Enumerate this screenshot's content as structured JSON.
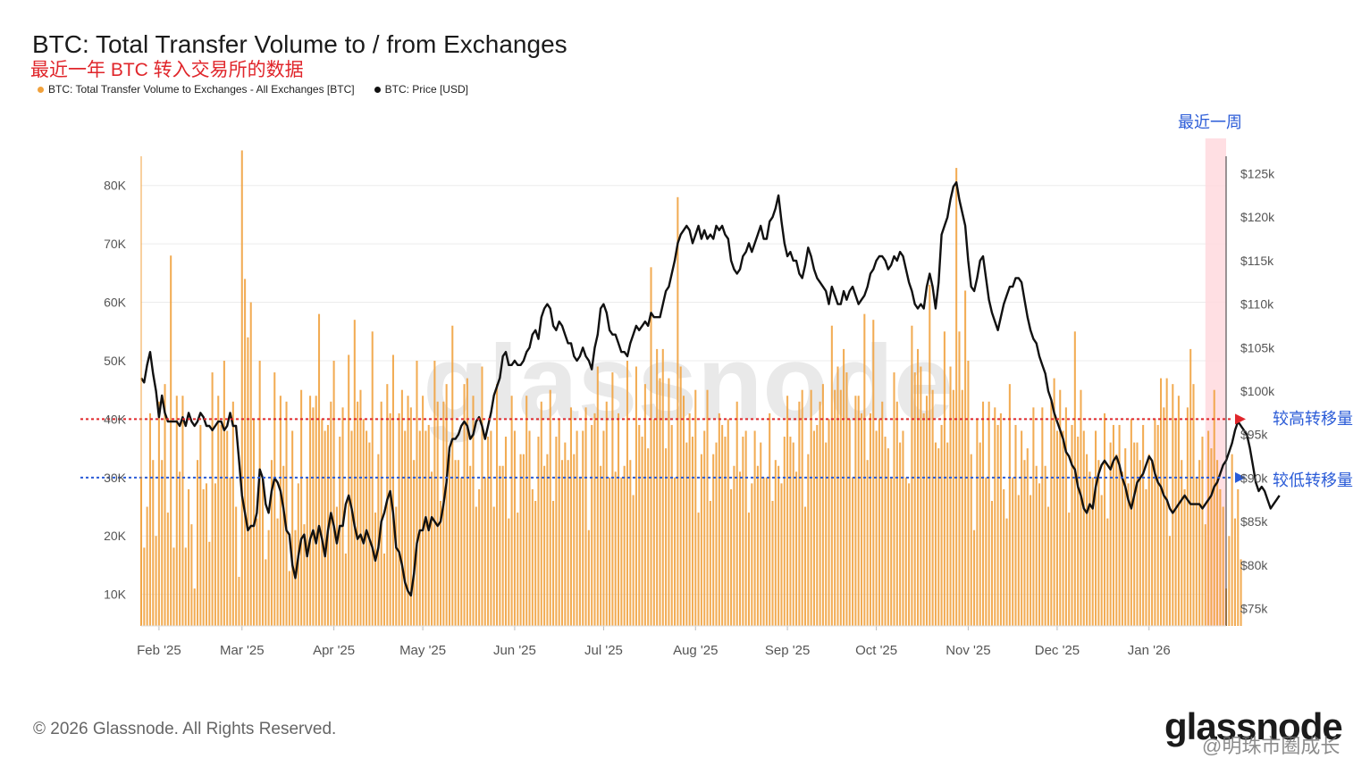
{
  "header": {
    "title": "BTC: Total Transfer Volume to / from Exchanges",
    "subtitle": "最近一年 BTC 转入交易所的数据"
  },
  "legend": [
    {
      "label": "BTC: Total Transfer Volume to Exchanges - All Exchanges [BTC]",
      "color": "#f0a13c"
    },
    {
      "label": "BTC: Price [USD]",
      "color": "#111111"
    }
  ],
  "annotations": {
    "recent_week": "最近一周",
    "high_line": "较高转移量",
    "low_line": "较低转移量",
    "high_value": 40000,
    "low_value": 30000,
    "high_color": "#e0262b",
    "low_color": "#2a5bd7"
  },
  "footer": {
    "copyright": "© 2026 Glassnode. All Rights Reserved.",
    "logo": "glassnode",
    "watermark": "@明珠市圈成长"
  },
  "chart_data": {
    "type": "bar",
    "grid": true,
    "x_start": "2025-01-26",
    "x_end": "2026-01-27",
    "x_ticks": [
      {
        "label": "Feb '25",
        "date": "2025-02-01"
      },
      {
        "label": "Mar '25",
        "date": "2025-03-01"
      },
      {
        "label": "Apr '25",
        "date": "2025-04-01"
      },
      {
        "label": "May '25",
        "date": "2025-05-01"
      },
      {
        "label": "Jun '25",
        "date": "2025-06-01"
      },
      {
        "label": "Jul '25",
        "date": "2025-07-01"
      },
      {
        "label": "Aug '25",
        "date": "2025-08-01"
      },
      {
        "label": "Sep '25",
        "date": "2025-09-01"
      },
      {
        "label": "Oct '25",
        "date": "2025-10-01"
      },
      {
        "label": "Nov '25",
        "date": "2025-11-01"
      },
      {
        "label": "Dec '25",
        "date": "2025-12-01"
      },
      {
        "label": "Jan '26",
        "date": "2026-01-01"
      }
    ],
    "y_left": {
      "min": 4600,
      "max": 85000,
      "ticks": [
        {
          "label": "10K",
          "value": 10000
        },
        {
          "label": "20K",
          "value": 20000
        },
        {
          "label": "30K",
          "value": 30000
        },
        {
          "label": "40K",
          "value": 40000
        },
        {
          "label": "50K",
          "value": 50000
        },
        {
          "label": "60K",
          "value": 60000
        },
        {
          "label": "70K",
          "value": 70000
        },
        {
          "label": "80K",
          "value": 80000
        }
      ]
    },
    "y_right": {
      "min": 73000,
      "max": 127000,
      "ticks": [
        {
          "label": "$75k",
          "value": 75000
        },
        {
          "label": "$80k",
          "value": 80000
        },
        {
          "label": "$85k",
          "value": 85000
        },
        {
          "label": "$90k",
          "value": 90000
        },
        {
          "label": "$95k",
          "value": 95000
        },
        {
          "label": "$100k",
          "value": 100000
        },
        {
          "label": "$105k",
          "value": 105000
        },
        {
          "label": "$110k",
          "value": 110000
        },
        {
          "label": "$115k",
          "value": 115000
        },
        {
          "label": "$120k",
          "value": 120000
        },
        {
          "label": "$125k",
          "value": 125000
        }
      ]
    },
    "recent_week": {
      "start": "2026-01-20",
      "end": "2026-01-27"
    },
    "series": [
      {
        "name": "BTC: Total Transfer Volume to Exchanges - All Exchanges [BTC]",
        "type": "bar",
        "color": "#f0a13c",
        "start_date": "2025-01-26",
        "values": [
          30000,
          18000,
          25000,
          41000,
          33000,
          20000,
          43000,
          33000,
          46000,
          24000,
          68000,
          18000,
          44000,
          31000,
          44000,
          18000,
          28000,
          22000,
          11000,
          33000,
          39000,
          28000,
          29000,
          19000,
          48000,
          29000,
          44000,
          39000,
          50000,
          38000,
          30000,
          43000,
          25000,
          13000,
          86000,
          64000,
          54000,
          60000,
          40000,
          23000,
          50000,
          30000,
          16000,
          21000,
          33000,
          48000,
          23000,
          44000,
          32000,
          43000,
          14000,
          38000,
          21000,
          29000,
          45000,
          22000,
          30000,
          44000,
          42000,
          44000,
          58000,
          40000,
          38000,
          39000,
          43000,
          50000,
          25000,
          37000,
          42000,
          17000,
          51000,
          38000,
          57000,
          43000,
          45000,
          40000,
          38000,
          36000,
          55000,
          24000,
          34000,
          43000,
          17000,
          46000,
          41000,
          51000,
          25000,
          41000,
          45000,
          38000,
          44000,
          42000,
          33000,
          50000,
          38000,
          44000,
          38000,
          39000,
          31000,
          50000,
          43000,
          26000,
          43000,
          46000,
          34000,
          56000,
          33000,
          33000,
          30000,
          46000,
          47000,
          32000,
          44000,
          25000,
          28000,
          49000,
          30000,
          37000,
          38000,
          25000,
          46000,
          32000,
          32000,
          37000,
          23000,
          44000,
          38000,
          24000,
          34000,
          34000,
          44000,
          38000,
          28000,
          26000,
          37000,
          43000,
          32000,
          34000,
          45000,
          26000,
          37000,
          40000,
          33000,
          36000,
          33000,
          42000,
          34000,
          38000,
          30000,
          38000,
          42000,
          21000,
          39000,
          41000,
          49000,
          32000,
          38000,
          43000,
          30000,
          48000,
          31000,
          41000,
          30000,
          32000,
          50000,
          33000,
          27000,
          49000,
          39000,
          37000,
          46000,
          35000,
          66000,
          40000,
          52000,
          47000,
          52000,
          35000,
          47000,
          39000,
          30000,
          78000,
          49000,
          44000,
          36000,
          41000,
          37000,
          45000,
          24000,
          34000,
          38000,
          45000,
          26000,
          34000,
          36000,
          41000,
          39000,
          37000,
          40000,
          28000,
          32000,
          43000,
          31000,
          37000,
          38000,
          24000,
          29000,
          38000,
          32000,
          36000,
          30000,
          30000,
          41000,
          26000,
          33000,
          32000,
          29000,
          37000,
          44000,
          37000,
          36000,
          31000,
          43000,
          45000,
          25000,
          34000,
          45000,
          38000,
          39000,
          43000,
          46000,
          36000,
          40000,
          56000,
          45000,
          49000,
          45000,
          52000,
          48000,
          40000,
          30000,
          44000,
          44000,
          41000,
          58000,
          33000,
          41000,
          57000,
          38000,
          40000,
          43000,
          37000,
          35000,
          30000,
          48000,
          43000,
          36000,
          38000,
          30000,
          29000,
          56000,
          48000,
          52000,
          49000,
          41000,
          44000,
          63000,
          45000,
          36000,
          35000,
          39000,
          55000,
          36000,
          49000,
          45000,
          83000,
          55000,
          45000,
          62000,
          50000,
          34000,
          21000,
          40000,
          36000,
          43000,
          30000,
          43000,
          26000,
          42000,
          39000,
          41000,
          28000,
          23000,
          46000,
          30000,
          39000,
          27000,
          38000,
          33000,
          35000,
          27000,
          42000,
          32000,
          29000,
          42000,
          32000,
          25000,
          43000,
          47000,
          38000,
          45000,
          38000,
          42000,
          24000,
          39000,
          55000,
          37000,
          45000,
          38000,
          34000,
          31000,
          30000,
          38000,
          33000,
          27000,
          41000,
          23000,
          36000,
          39000,
          34000,
          39000,
          31000,
          35000,
          29000,
          40000,
          36000,
          36000,
          33000,
          39000,
          28000,
          34000,
          33000,
          40000,
          39000,
          47000,
          42000,
          47000,
          20000,
          46000,
          40000,
          44000,
          33000,
          28000,
          42000,
          52000,
          46000,
          30000,
          33000,
          37000,
          22000,
          38000,
          35000,
          45000,
          33000,
          28000,
          25000,
          11000,
          20000,
          34000,
          23000,
          28000,
          16000
        ]
      },
      {
        "name": "BTC: Price [USD]",
        "type": "line",
        "color": "#111111",
        "start_date": "2025-01-26",
        "values": [
          101500,
          101000,
          103000,
          104500,
          102000,
          100000,
          97000,
          99500,
          97500,
          96500,
          96500,
          96500,
          96500,
          96000,
          97000,
          96000,
          97500,
          96500,
          96000,
          96500,
          97500,
          97000,
          96000,
          96000,
          95500,
          96000,
          96500,
          96500,
          95500,
          96000,
          97500,
          96000,
          96000,
          92000,
          88000,
          86000,
          84000,
          84500,
          84500,
          86000,
          91000,
          90000,
          87000,
          86000,
          88500,
          90000,
          89500,
          88500,
          86500,
          84000,
          83500,
          80000,
          78500,
          81000,
          83000,
          83500,
          81000,
          83000,
          84000,
          82500,
          84500,
          83000,
          81000,
          84000,
          86000,
          84500,
          82500,
          84500,
          84500,
          87000,
          88000,
          86500,
          84500,
          83000,
          83500,
          82500,
          84000,
          83000,
          82000,
          80500,
          82000,
          85000,
          86000,
          87500,
          88500,
          86000,
          82000,
          81500,
          80000,
          78000,
          77000,
          76500,
          79000,
          82500,
          84000,
          84000,
          85500,
          84000,
          85500,
          85000,
          84500,
          85000,
          87000,
          89500,
          93500,
          94500,
          94500,
          95000,
          96000,
          96500,
          96000,
          94500,
          95000,
          96500,
          97000,
          96000,
          94500,
          96000,
          97500,
          99500,
          100500,
          101500,
          104000,
          104500,
          103000,
          103000,
          103500,
          103000,
          103000,
          103500,
          104500,
          105000,
          106500,
          107000,
          106000,
          108500,
          109500,
          110000,
          109500,
          107500,
          107000,
          108000,
          107500,
          106500,
          105500,
          105500,
          104000,
          103500,
          104000,
          105000,
          104000,
          103500,
          102500,
          105000,
          106500,
          109500,
          110000,
          109000,
          107000,
          106500,
          106500,
          105500,
          104500,
          104500,
          104000,
          105500,
          106500,
          107500,
          107000,
          107500,
          108000,
          107500,
          109000,
          108500,
          108500,
          108500,
          110000,
          111500,
          112000,
          113500,
          115000,
          117000,
          118000,
          118500,
          119000,
          118500,
          117000,
          118000,
          119000,
          117500,
          118500,
          117500,
          118000,
          117500,
          119000,
          118500,
          119000,
          118000,
          117500,
          115000,
          114000,
          113500,
          114000,
          115500,
          116000,
          117000,
          116000,
          117000,
          118000,
          119000,
          117500,
          117500,
          119500,
          120000,
          121000,
          122500,
          119500,
          117000,
          115500,
          116000,
          115000,
          115000,
          113500,
          113000,
          114500,
          116500,
          115500,
          114000,
          113000,
          112500,
          112000,
          111500,
          110000,
          112000,
          111000,
          110000,
          110000,
          111500,
          110500,
          111500,
          112000,
          111000,
          110000,
          110500,
          111000,
          112000,
          113500,
          114000,
          115000,
          115500,
          115500,
          115000,
          114000,
          114500,
          115500,
          115000,
          116000,
          115500,
          114000,
          112500,
          111500,
          110000,
          109500,
          110000,
          109500,
          112000,
          113500,
          112000,
          109500,
          112500,
          118000,
          119000,
          120000,
          122000,
          123500,
          124000,
          122000,
          120500,
          119000,
          115000,
          112000,
          111500,
          113000,
          115000,
          115500,
          113000,
          110500,
          109000,
          108000,
          107000,
          108500,
          110000,
          111000,
          112000,
          112000,
          113000,
          113000,
          112500,
          110500,
          108500,
          107000,
          106000,
          105500,
          104000,
          103000,
          102000,
          100000,
          99000,
          97500,
          96500,
          95500,
          94500,
          93000,
          92500,
          91500,
          91000,
          89000,
          88000,
          86500,
          86000,
          87000,
          86500,
          89000,
          90500,
          91500,
          92000,
          91500,
          91000,
          92000,
          92500,
          91500,
          90000,
          89000,
          87500,
          86500,
          88000,
          89500,
          90000,
          90500,
          91500,
          92500,
          92000,
          90500,
          89500,
          89000,
          88000,
          87500,
          86500,
          86000,
          86500,
          87000,
          87500,
          88000,
          87500,
          87000,
          87000,
          87000,
          87000,
          86500,
          87000,
          87500,
          88000,
          89000,
          89500,
          90500,
          91500,
          92000,
          93000,
          94000,
          95500,
          96500,
          96000,
          95500,
          95000,
          93500,
          91500,
          89500,
          88500,
          89000,
          88500,
          87500,
          86500,
          87000,
          87500,
          88000
        ]
      }
    ]
  }
}
